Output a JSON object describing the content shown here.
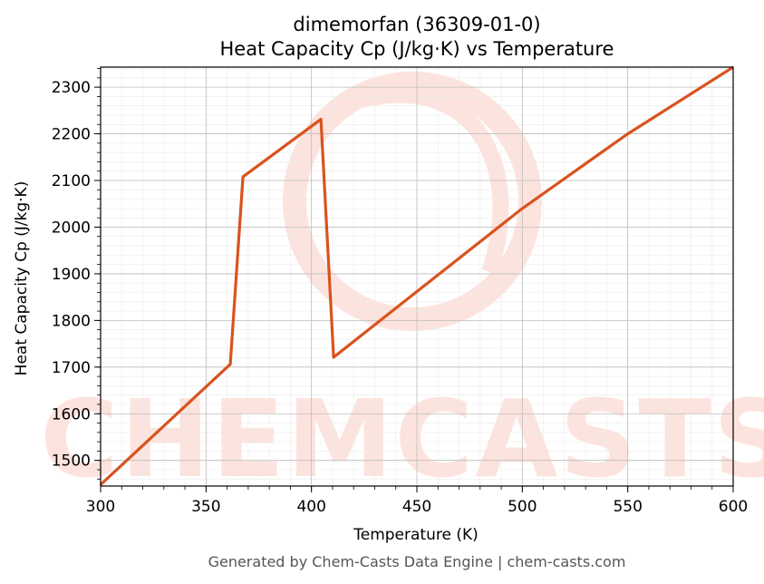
{
  "chart_data": {
    "type": "line",
    "title": "dimemorfan (36309-01-0)",
    "subtitle": "Heat Capacity Cp (J/kg·K) vs Temperature",
    "xlabel": "Temperature (K)",
    "ylabel": "Heat Capacity Cp (J/kg·K)",
    "xlim": [
      300,
      600
    ],
    "ylim": [
      1445,
      2343
    ],
    "x_ticks": [
      300,
      350,
      400,
      450,
      500,
      550,
      600
    ],
    "y_ticks": [
      1500,
      1600,
      1700,
      1800,
      1900,
      2000,
      2100,
      2200,
      2300
    ],
    "grid": true,
    "series": [
      {
        "color": "#d9531e",
        "points": [
          [
            300,
            1448
          ],
          [
            361.5,
            1706
          ],
          [
            367.5,
            2108
          ],
          [
            404.5,
            2231
          ],
          [
            410.5,
            1721
          ],
          [
            450,
            1862
          ],
          [
            500,
            2040
          ],
          [
            550,
            2200
          ],
          [
            600,
            2343
          ]
        ]
      }
    ]
  },
  "watermark": {
    "text": "CHEMCASTS",
    "color": "#fde0da"
  },
  "footer": "Generated by Chem-Casts Data Engine | chem-casts.com"
}
